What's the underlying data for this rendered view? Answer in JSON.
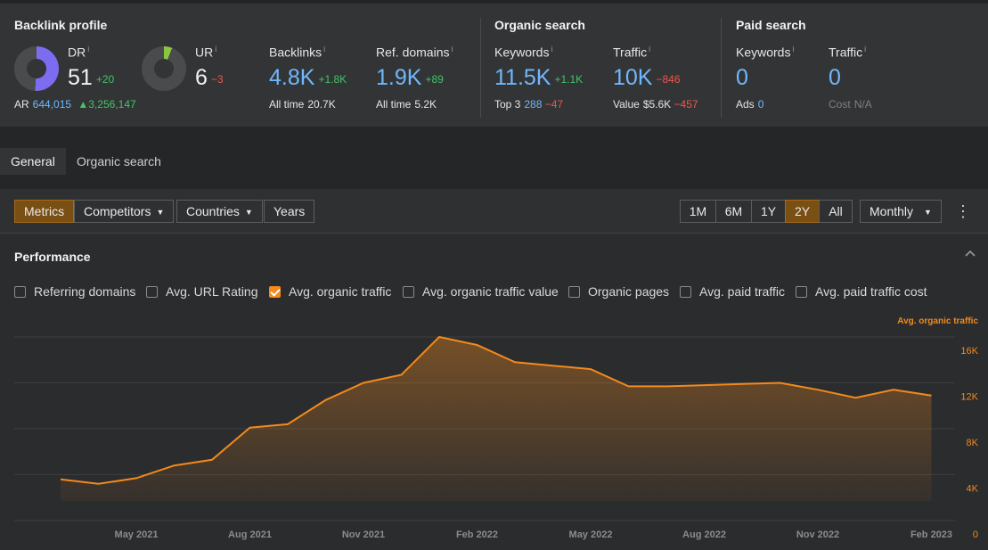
{
  "backlink_profile": {
    "title": "Backlink profile",
    "dr": {
      "label": "DR",
      "info": "i",
      "value": "51",
      "delta": "+20",
      "donut_fraction": 0.51
    },
    "ur": {
      "label": "UR",
      "info": "i",
      "value": "6",
      "delta": "−3",
      "donut_fraction": 0.06
    },
    "ar": {
      "label": "AR",
      "value": "644,015",
      "delta": "▲3,256,147"
    },
    "backlinks": {
      "label": "Backlinks",
      "info": "i",
      "value": "4.8K",
      "delta": "+1.8K",
      "sub_label": "All time",
      "sub_value": "20.7K"
    },
    "ref_domains": {
      "label": "Ref. domains",
      "info": "i",
      "value": "1.9K",
      "delta": "+89",
      "sub_label": "All time",
      "sub_value": "5.2K"
    }
  },
  "organic_search": {
    "title": "Organic search",
    "keywords": {
      "label": "Keywords",
      "info": "i",
      "value": "11.5K",
      "delta": "+1.1K",
      "sub_label": "Top 3",
      "sub_value": "288",
      "sub_delta": "−47"
    },
    "traffic": {
      "label": "Traffic",
      "info": "i",
      "value": "10K",
      "delta": "−846",
      "sub_label": "Value",
      "sub_value": "$5.6K",
      "sub_delta": "−457"
    }
  },
  "paid_search": {
    "title": "Paid search",
    "keywords": {
      "label": "Keywords",
      "info": "i",
      "value": "0",
      "sub_label": "Ads",
      "sub_value": "0"
    },
    "traffic": {
      "label": "Traffic",
      "info": "i",
      "value": "0",
      "sub_label": "Cost",
      "sub_value": "N/A"
    }
  },
  "tabs": [
    {
      "label": "General"
    },
    {
      "label": "Organic search"
    }
  ],
  "toolbar": {
    "metrics": "Metrics",
    "competitors": "Competitors",
    "countries": "Countries",
    "years": "Years",
    "ranges": [
      "1M",
      "6M",
      "1Y",
      "2Y",
      "All"
    ],
    "active_range": "2Y",
    "interval": "Monthly",
    "caret": "▼",
    "kebab": "⋮"
  },
  "performance": {
    "title": "Performance",
    "collapse_icon": "chevron-up-icon",
    "legend": [
      {
        "label": "Referring domains",
        "checked": false
      },
      {
        "label": "Avg. URL Rating",
        "checked": false
      },
      {
        "label": "Avg. organic traffic",
        "checked": true
      },
      {
        "label": "Avg. organic traffic value",
        "checked": false
      },
      {
        "label": "Organic pages",
        "checked": false
      },
      {
        "label": "Avg. paid traffic",
        "checked": false
      },
      {
        "label": "Avg. paid traffic cost",
        "checked": false
      }
    ]
  },
  "colors": {
    "accent": "#f28a1c",
    "blue": "#6fb8ff",
    "up": "#43c46a",
    "down": "#f2564c",
    "dr_donut": "#7b6cf0",
    "ur_donut": "#8cc63e"
  },
  "chart_data": {
    "type": "area",
    "series": [
      {
        "name": "Avg. organic traffic",
        "x": [
          "2021-03",
          "2021-04",
          "2021-05",
          "2021-06",
          "2021-07",
          "2021-08",
          "2021-09",
          "2021-10",
          "2021-11",
          "2021-12",
          "2022-01",
          "2022-02",
          "2022-03",
          "2022-04",
          "2022-05",
          "2022-06",
          "2022-07",
          "2022-08",
          "2022-09",
          "2022-10",
          "2022-11",
          "2022-12",
          "2023-01",
          "2023-02"
        ],
        "values": [
          3600,
          3200,
          3700,
          4800,
          5300,
          8100,
          8400,
          10500,
          12000,
          12700,
          16000,
          15300,
          13800,
          13500,
          13200,
          11700,
          11700,
          11800,
          11900,
          12000,
          11400,
          10700,
          11400,
          10900
        ]
      }
    ],
    "x_tick_labels": [
      "May 2021",
      "Aug 2021",
      "Nov 2021",
      "Feb 2022",
      "May 2022",
      "Aug 2022",
      "Nov 2022",
      "Feb 2023"
    ],
    "x_tick_months": [
      "2021-05",
      "2021-08",
      "2021-11",
      "2022-02",
      "2022-05",
      "2022-08",
      "2022-11",
      "2023-02"
    ],
    "y_axis_title": "Avg. organic traffic",
    "y_ticks": [
      0,
      4000,
      8000,
      12000,
      16000
    ],
    "y_tick_labels": [
      "0",
      "4K",
      "8K",
      "12K",
      "16K"
    ],
    "ylim": [
      0,
      16000
    ],
    "grid": true
  }
}
